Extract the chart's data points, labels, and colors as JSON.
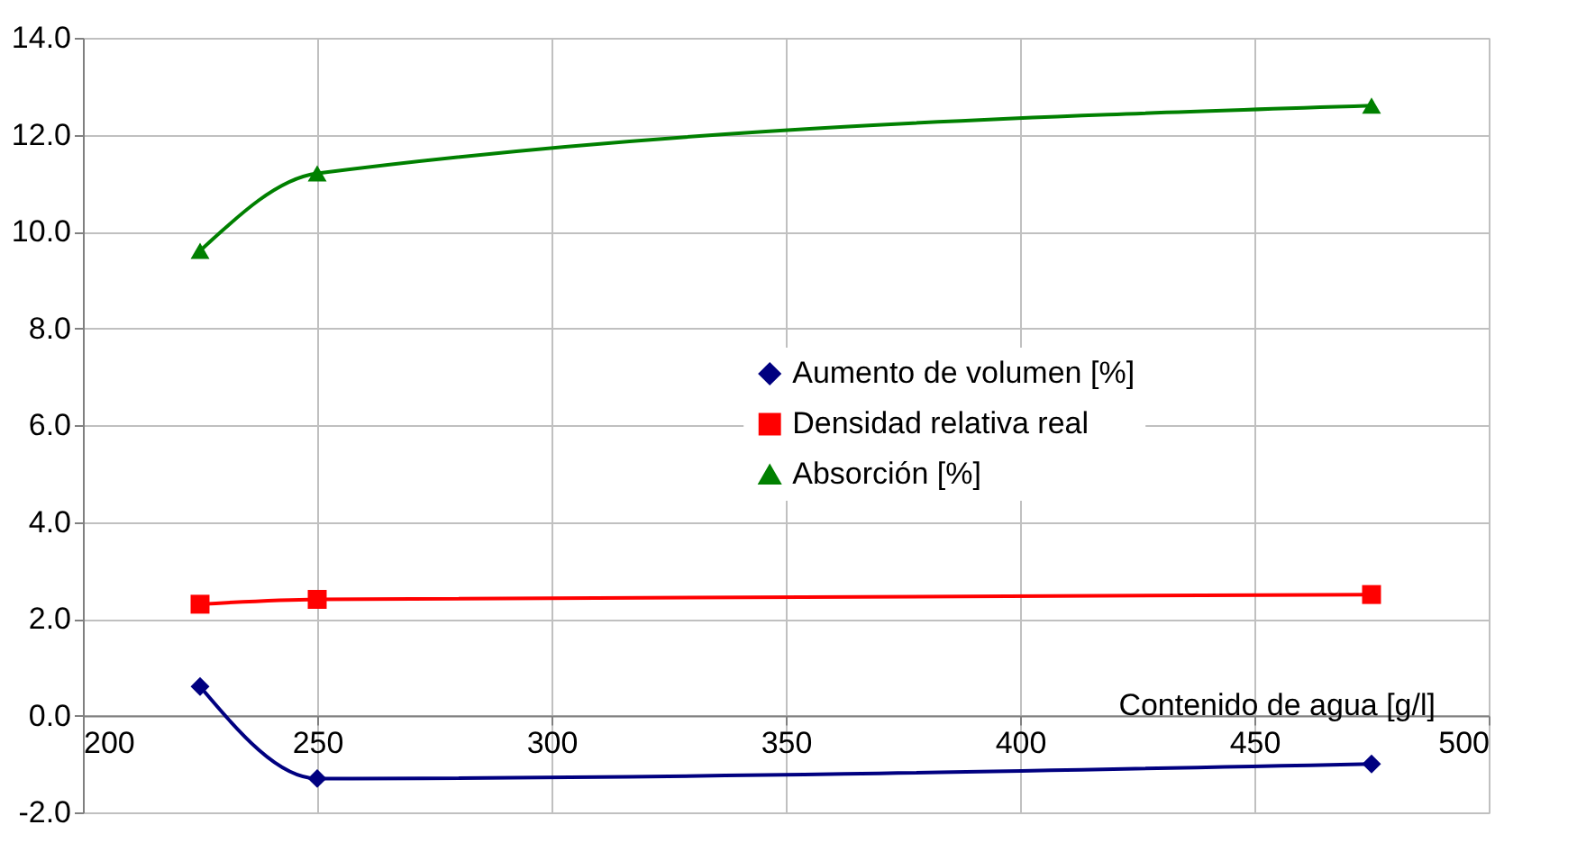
{
  "chart_data": {
    "type": "line",
    "xlabel": "Contenido de agua [g/l]",
    "x": [
      225,
      250,
      475
    ],
    "series": [
      {
        "name": "Aumento de volumen [%]",
        "color": "#000080",
        "marker": "diamond",
        "values": [
          0.6,
          -1.3,
          -1.0
        ]
      },
      {
        "name": "Densidad relativa real",
        "color": "#ff0000",
        "marker": "square",
        "values": [
          2.3,
          2.4,
          2.5
        ]
      },
      {
        "name": "Absorción [%]",
        "color": "#008000",
        "marker": "triangle",
        "values": [
          9.6,
          11.2,
          12.6
        ]
      }
    ],
    "xlim": [
      200,
      500
    ],
    "xticks": [
      200,
      250,
      300,
      350,
      400,
      450,
      500
    ],
    "ylim": [
      -2,
      14
    ],
    "yticks": [
      {
        "value": -2,
        "label": "-2.0"
      },
      {
        "value": 0,
        "label": "0.0"
      },
      {
        "value": 2,
        "label": "2.0"
      },
      {
        "value": 4,
        "label": "4.0"
      },
      {
        "value": 6,
        "label": "6.0"
      },
      {
        "value": 8,
        "label": "8.0"
      },
      {
        "value": 10,
        "label": "10.0"
      },
      {
        "value": 12,
        "label": "12.0"
      },
      {
        "value": 14,
        "label": "14.0"
      }
    ],
    "grid": true,
    "legend": "right",
    "line_style": "solid"
  }
}
